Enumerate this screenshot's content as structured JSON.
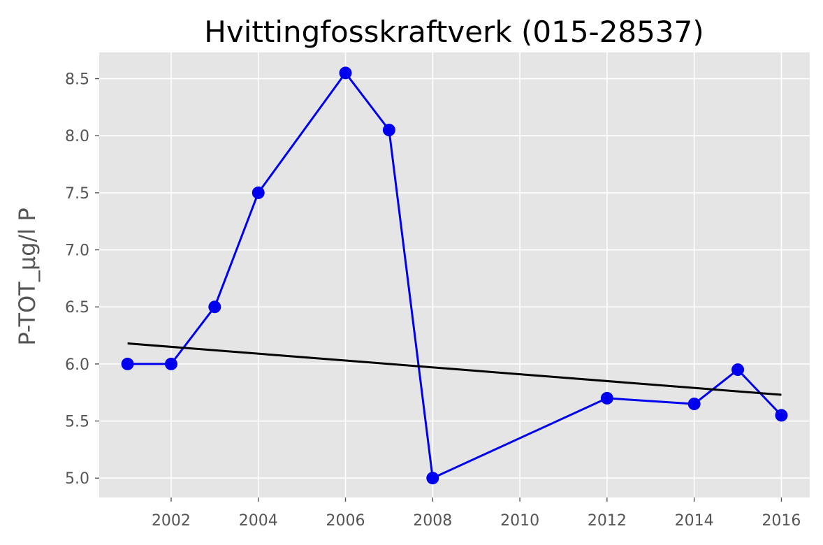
{
  "chart_data": {
    "type": "line",
    "title": "Hvittingfosskraftverk (015-28537)",
    "xlabel": "",
    "ylabel": "P-TOT_µg/l P",
    "xlim": [
      2000.35,
      2016.65
    ],
    "ylim": [
      4.83,
      8.73
    ],
    "xticks": [
      2002,
      2004,
      2006,
      2008,
      2010,
      2012,
      2014,
      2016
    ],
    "yticks": [
      5.0,
      5.5,
      6.0,
      6.5,
      7.0,
      7.5,
      8.0,
      8.5
    ],
    "grid": true,
    "legend": "none",
    "series": [
      {
        "kind": "line-markers",
        "color": "#0000ee",
        "x": [
          2001,
          2002,
          2003,
          2004,
          2006,
          2007,
          2008,
          2012,
          2014,
          2015,
          2016
        ],
        "y": [
          6.0,
          6.0,
          6.5,
          7.5,
          8.55,
          8.05,
          5.0,
          5.7,
          5.65,
          5.95,
          5.55
        ]
      },
      {
        "kind": "trend-line",
        "color": "#000000",
        "x": [
          2001,
          2016
        ],
        "y": [
          6.18,
          5.73
        ]
      }
    ]
  }
}
